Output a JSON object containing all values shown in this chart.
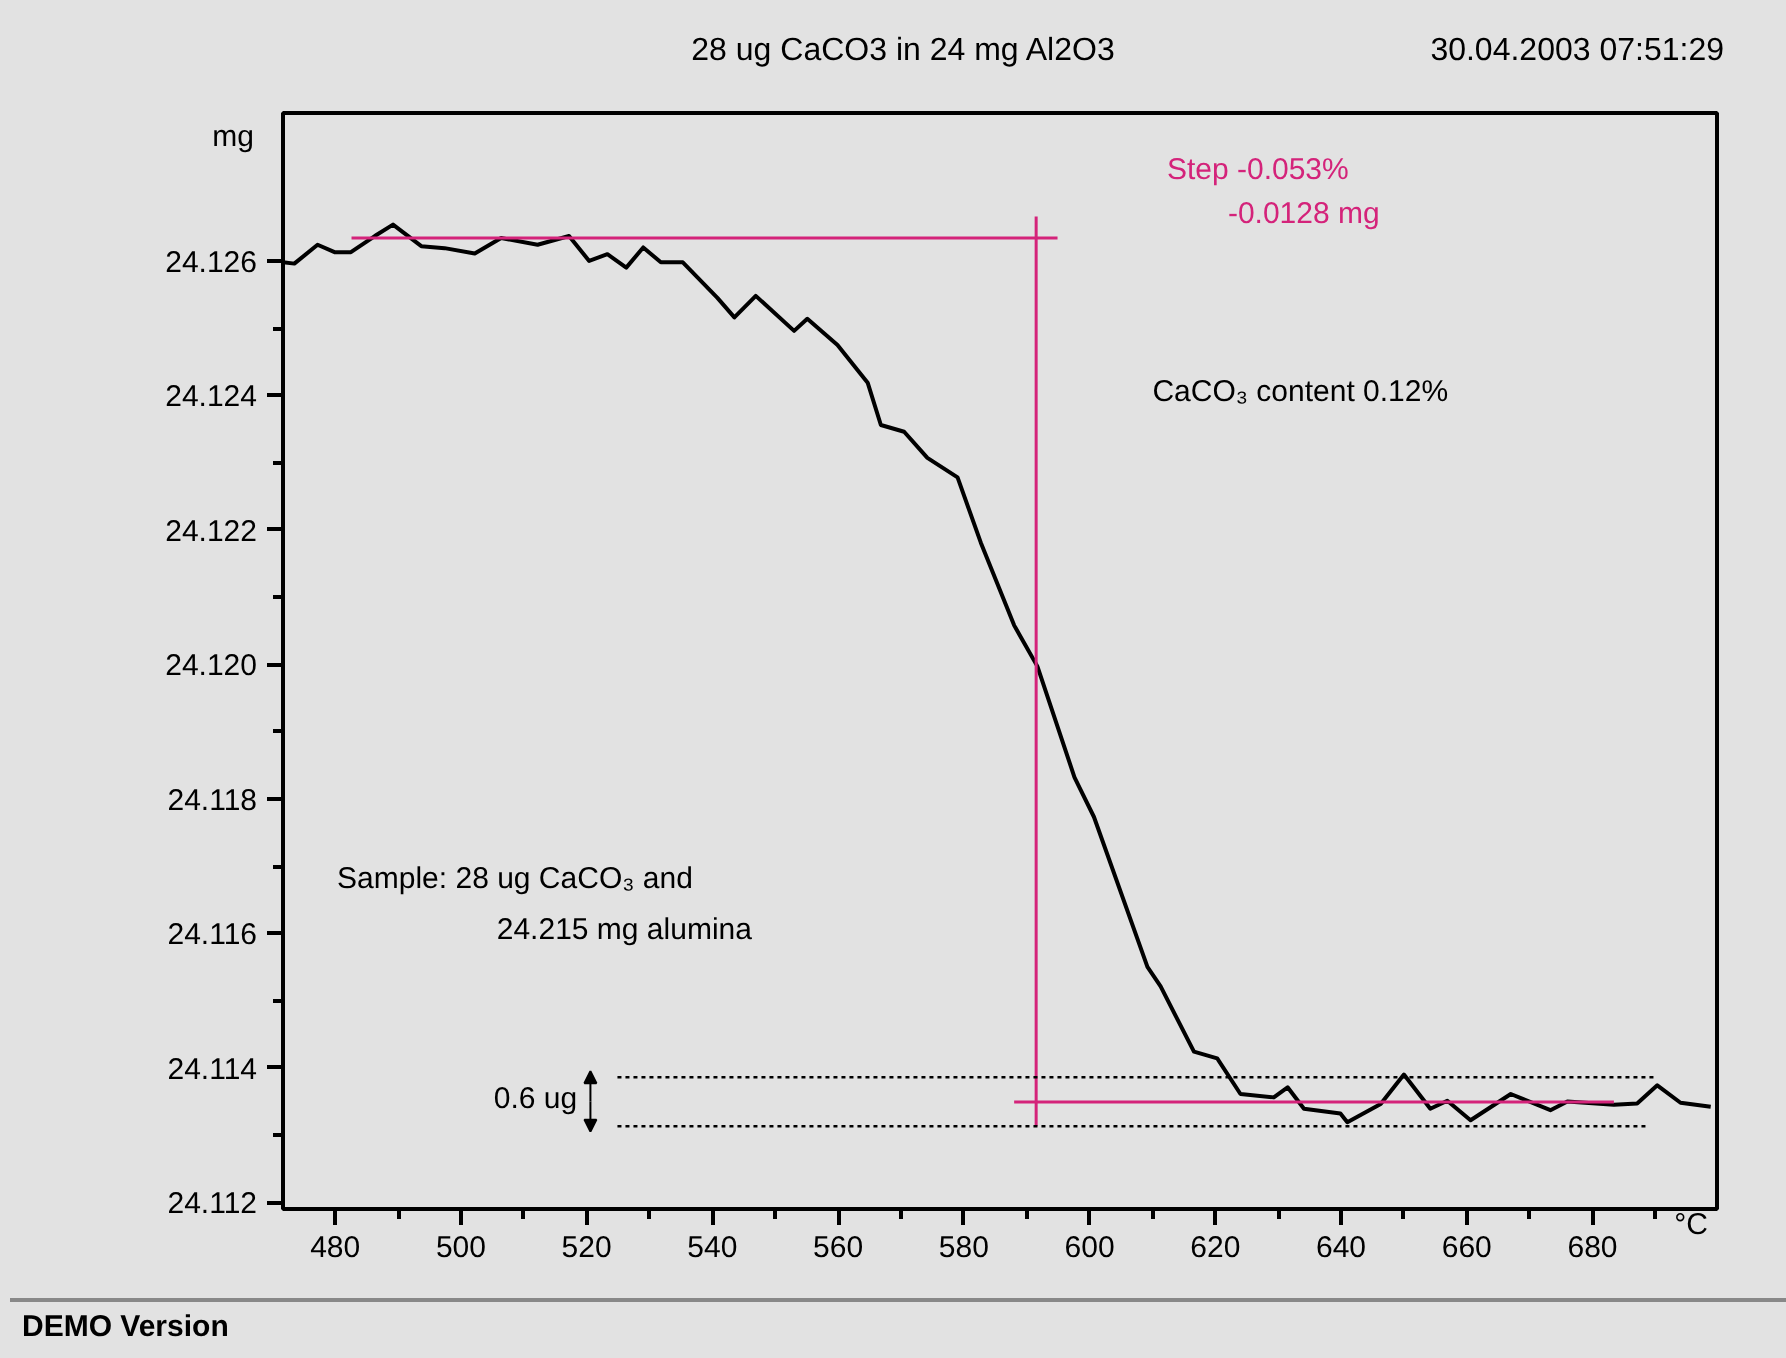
{
  "chart_data": {
    "type": "line",
    "title": "28 ug CaCO3 in 24 mg Al2O3",
    "xlabel": "°C",
    "ylabel": "mg",
    "xlim": [
      471.7,
      699.8
    ],
    "ylim": [
      24.1119,
      24.1282
    ],
    "xticks": [
      480,
      500,
      520,
      540,
      560,
      580,
      600,
      620,
      640,
      660,
      680
    ],
    "yticks": [
      24.112,
      24.114,
      24.116,
      24.118,
      {
        "value": 24.12,
        "label": "24.120"
      },
      24.122,
      24.124,
      24.126
    ],
    "grid": false,
    "annotations": [
      "Step  -0.053%",
      "-0.0128 mg",
      "CaCO₃  content 0.12%",
      "Sample:  28 ug CaCO₃ and",
      "24.215 mg alumina",
      "0.6 ug",
      "30.04.2003 07:51:29",
      "DEMO Version"
    ],
    "series": [
      {
        "color": "#000000",
        "line_style": "solid",
        "x": [
          471.7,
          473.5,
          477.2,
          479.9,
          482.5,
          486.3,
          489.2,
          493.7,
          497.4,
          502.2,
          506.4,
          512.2,
          517.2,
          520.4,
          523.3,
          526.3,
          529.0,
          531.8,
          535.3,
          540.8,
          543.5,
          546.9,
          553.0,
          555.1,
          559.9,
          564.7,
          566.8,
          570.5,
          574.2,
          579.0,
          582.7,
          588.0,
          591.7,
          597.6,
          600.7,
          609.2,
          611.3,
          616.6,
          620.3,
          624.0,
          629.3,
          631.5,
          634.1,
          639.9,
          641.0,
          646.3,
          650.0,
          654.2,
          656.9,
          660.6,
          667.0,
          673.3,
          676.0,
          683.4,
          687.1,
          690.3,
          694.0,
          698.8
        ],
        "values": [
          24.12598,
          24.12596,
          24.12624,
          24.12613,
          24.12613,
          24.12637,
          24.12654,
          24.12622,
          24.12619,
          24.12611,
          24.12634,
          24.12624,
          24.12637,
          24.126,
          24.1261,
          24.1259,
          24.1262,
          24.12598,
          24.12598,
          24.12545,
          24.12516,
          24.12548,
          24.12496,
          24.12514,
          24.12475,
          24.12419,
          24.12356,
          24.12346,
          24.12307,
          24.12278,
          24.12181,
          24.12058,
          24.11997,
          24.11832,
          24.11773,
          24.1155,
          24.11521,
          24.11424,
          24.11414,
          24.11361,
          24.11356,
          24.11371,
          24.11339,
          24.11332,
          24.11319,
          24.11346,
          24.1139,
          24.11339,
          24.11351,
          24.11322,
          24.11361,
          24.11337,
          24.1135,
          24.11345,
          24.11347,
          24.11374,
          24.11348,
          24.11342
        ]
      },
      {
        "color": "#d4237a",
        "line_style": "solid",
        "x": [
          482.6,
          594.9
        ],
        "values": [
          24.12634,
          24.12634
        ]
      },
      {
        "color": "#d4237a",
        "line_style": "solid",
        "x": [
          591.5,
          591.5
        ],
        "values": [
          24.12666,
          24.11313
        ]
      },
      {
        "color": "#d4237a",
        "line_style": "solid",
        "x": [
          588.0,
          683.4
        ],
        "values": [
          24.11349,
          24.11349
        ]
      },
      {
        "color": "#000000",
        "line_style": "dotted",
        "x": [
          524.9,
          690.3
        ],
        "values": [
          24.11386,
          24.11386
        ]
      },
      {
        "color": "#000000",
        "line_style": "dotted",
        "x": [
          524.9,
          688.7
        ],
        "values": [
          24.11313,
          24.11313
        ]
      }
    ]
  }
}
